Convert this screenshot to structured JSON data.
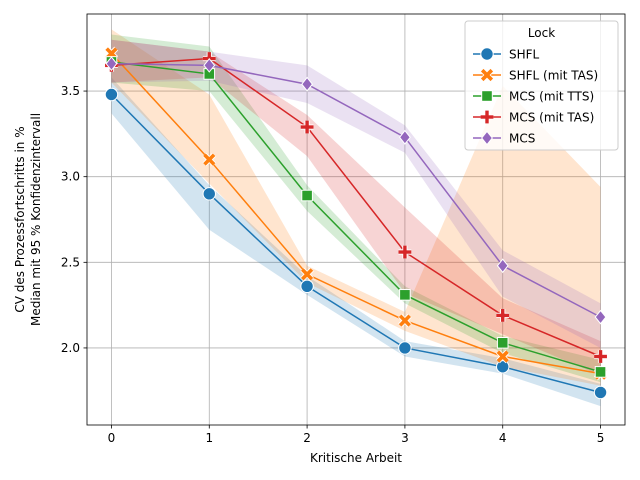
{
  "chart_data": {
    "type": "line",
    "xlabel": "Kritische Arbeit",
    "ylabel_lines": [
      "CV des Prozessfortschritts in %",
      "Median mit 95 % Konfidenzintervall"
    ],
    "x": [
      0,
      1,
      2,
      3,
      4,
      5
    ],
    "xticks": [
      "0",
      "1",
      "2",
      "3",
      "4",
      "5"
    ],
    "yticks": [
      "2.0",
      "2.5",
      "3.0",
      "3.5"
    ],
    "xlim": [
      -0.25,
      5.25
    ],
    "ylim": [
      1.55,
      3.95
    ],
    "grid": true,
    "legend": {
      "title": "Lock",
      "placement": "top-right"
    },
    "series": [
      {
        "name": "SHFL",
        "color": "#1f77b4",
        "marker": "circle",
        "values": [
          3.48,
          2.9,
          2.36,
          2.0,
          1.89,
          1.74
        ],
        "ci_low": [
          3.37,
          2.69,
          2.31,
          1.95,
          1.85,
          1.66
        ],
        "ci_high": [
          3.58,
          2.95,
          2.42,
          2.04,
          1.94,
          1.79
        ]
      },
      {
        "name": "SHFL (mit TAS)",
        "color": "#ff7f0e",
        "marker": "x",
        "values": [
          3.72,
          3.1,
          2.43,
          2.16,
          1.95,
          1.85
        ],
        "ci_low": [
          3.55,
          2.96,
          2.38,
          2.1,
          1.89,
          1.78
        ],
        "ci_high": [
          3.86,
          3.48,
          2.48,
          2.21,
          3.53,
          2.94
        ]
      },
      {
        "name": "MCS (mit TTS)",
        "color": "#2ca02c",
        "marker": "square",
        "values": [
          3.67,
          3.6,
          2.89,
          2.31,
          2.03,
          1.86
        ],
        "ci_low": [
          3.55,
          3.5,
          2.8,
          2.26,
          1.97,
          1.8
        ],
        "ci_high": [
          3.83,
          3.76,
          2.95,
          2.36,
          2.07,
          1.93
        ]
      },
      {
        "name": "MCS (mit TAS)",
        "color": "#d62728",
        "marker": "plus",
        "values": [
          3.65,
          3.69,
          3.29,
          2.56,
          2.19,
          1.95
        ],
        "ci_low": [
          3.55,
          3.58,
          3.12,
          2.32,
          2.08,
          1.84
        ],
        "ci_high": [
          3.8,
          3.73,
          3.36,
          2.82,
          2.29,
          2.04
        ]
      },
      {
        "name": "MCS",
        "color": "#9467bd",
        "marker": "diamond",
        "values": [
          3.66,
          3.65,
          3.54,
          3.23,
          2.48,
          2.18
        ],
        "ci_low": [
          3.55,
          3.56,
          3.43,
          3.14,
          2.3,
          2.0
        ],
        "ci_high": [
          3.8,
          3.73,
          3.65,
          3.3,
          2.57,
          2.26
        ]
      }
    ]
  }
}
